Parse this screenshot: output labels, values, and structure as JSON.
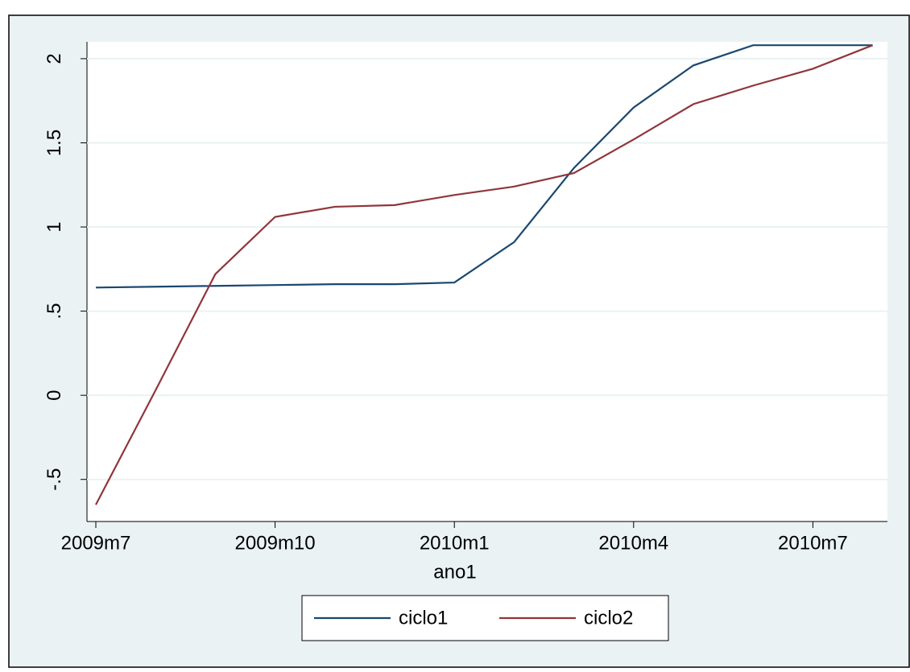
{
  "chart_data": {
    "type": "line",
    "x_label": "ano1",
    "categories": [
      "2009m7",
      null,
      null,
      "2009m10",
      null,
      null,
      "2010m1",
      null,
      null,
      "2010m4",
      null,
      null,
      "2010m7",
      null
    ],
    "series": [
      {
        "name": "ciclo1",
        "color": "#1a476f",
        "values": [
          0.64,
          0.645,
          0.65,
          0.655,
          0.66,
          0.66,
          0.67,
          0.91,
          1.35,
          1.71,
          1.96,
          2.08,
          2.08,
          2.08
        ]
      },
      {
        "name": "ciclo2",
        "color": "#90353b",
        "values": [
          -0.65,
          0.03,
          0.72,
          1.06,
          1.12,
          1.13,
          1.19,
          1.24,
          1.32,
          1.52,
          1.73,
          1.84,
          1.94,
          2.08
        ]
      }
    ],
    "ylim": [
      -0.75,
      2.1
    ],
    "yticks": [
      {
        "value": -0.5,
        "label": "-.5"
      },
      0,
      {
        "value": 0.5,
        "label": ".5"
      },
      1,
      1.5,
      2
    ],
    "grid": true,
    "legend": "bottom"
  }
}
